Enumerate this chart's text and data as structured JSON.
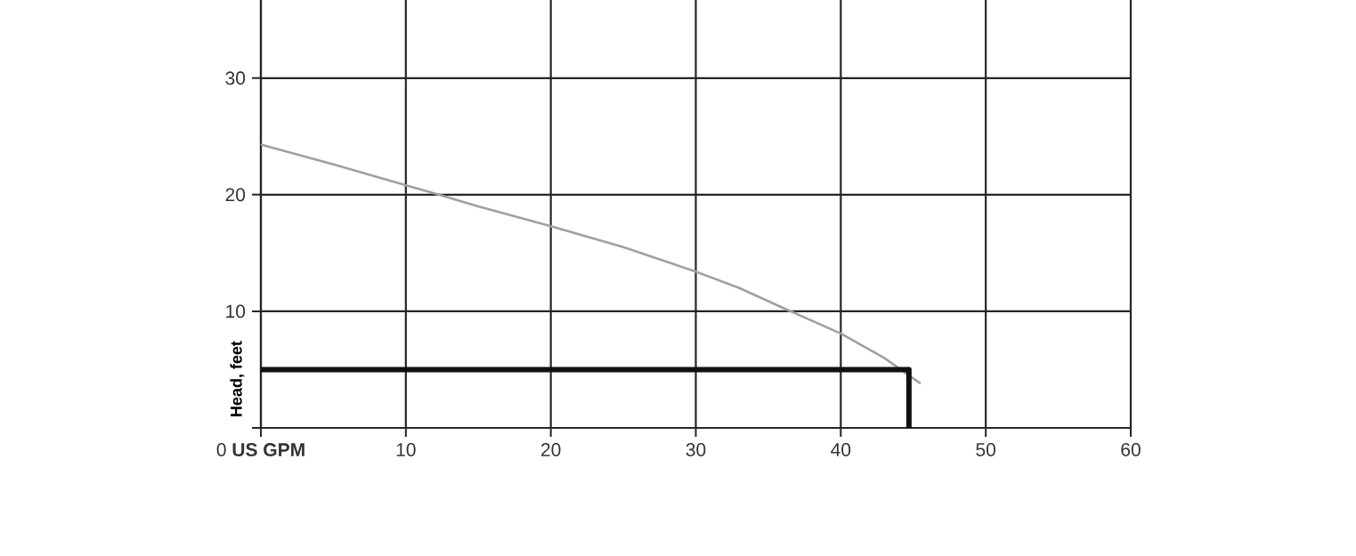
{
  "chart_data": {
    "type": "line",
    "xlabel": null,
    "ylabel": "Head, feet",
    "xlim": [
      0,
      60
    ],
    "ylim": [
      0,
      36.7
    ],
    "xticks": [
      {
        "value": 0,
        "label": "0 **US GPM**"
      },
      10,
      20,
      30,
      40,
      50,
      60
    ],
    "yticks": [
      {
        "value": 0,
        "label": null
      },
      10,
      20,
      30
    ],
    "grid": true,
    "marker": "none",
    "line_style": "solid",
    "series": [
      {
        "color": "#a0a0a0",
        "x": [
          0,
          5,
          10,
          12,
          15,
          20,
          25,
          30,
          33,
          36,
          40,
          43,
          45.5
        ],
        "values": [
          24.3,
          22.6,
          20.8,
          20.1,
          19.0,
          17.3,
          15.5,
          13.4,
          12.0,
          10.3,
          8.1,
          6.0,
          3.8
        ]
      },
      {
        "color": "#111111",
        "x": [
          0,
          44.7,
          44.7
        ],
        "values": [
          5,
          5,
          0
        ]
      }
    ]
  }
}
